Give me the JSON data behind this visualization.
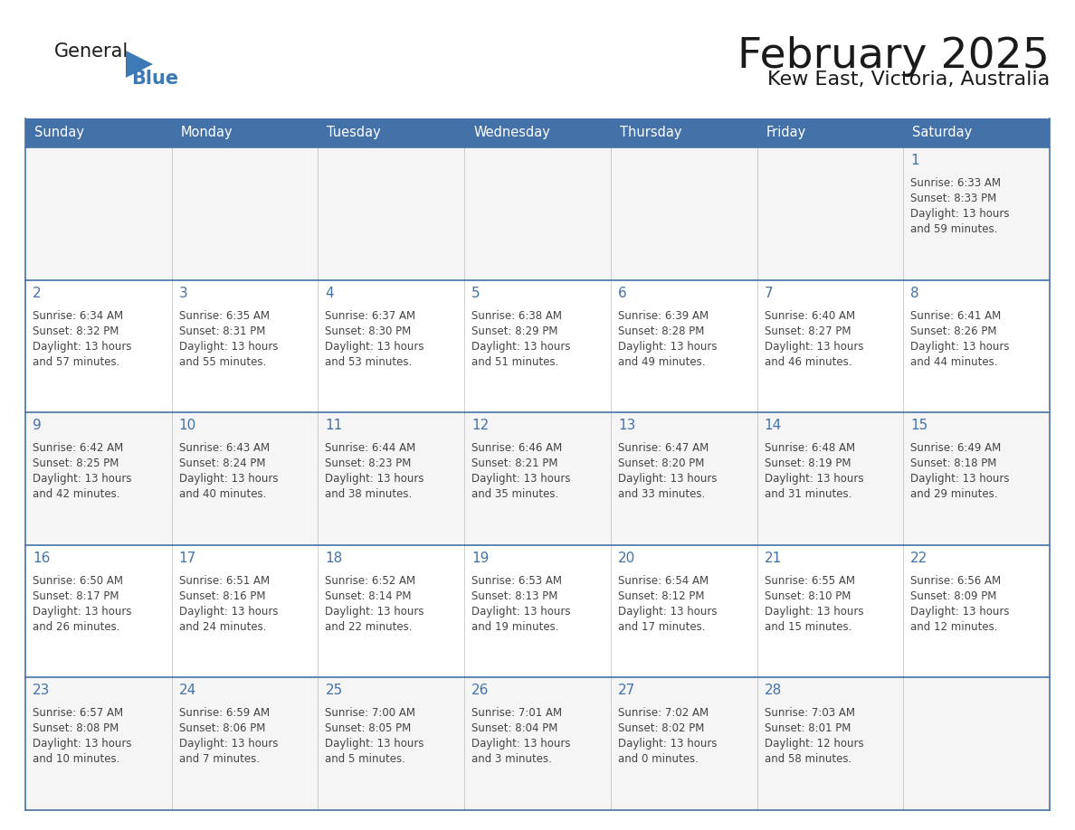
{
  "title": "February 2025",
  "subtitle": "Kew East, Victoria, Australia",
  "days_of_week": [
    "Sunday",
    "Monday",
    "Tuesday",
    "Wednesday",
    "Thursday",
    "Friday",
    "Saturday"
  ],
  "header_bg": "#4472a8",
  "header_text_color": "#ffffff",
  "cell_bg_odd": "#f5f5f5",
  "cell_bg_even": "#ffffff",
  "row_divider_color": "#4472a8",
  "col_divider_color": "#cccccc",
  "day_num_color": "#4472a8",
  "info_text_color": "#444444",
  "title_color": "#1a1a1a",
  "logo_general_color": "#1a1a1a",
  "logo_blue_color": "#3d7ab5",
  "logo_triangle_color": "#3d7ab5",
  "weeks": [
    [
      {
        "date": null
      },
      {
        "date": null
      },
      {
        "date": null
      },
      {
        "date": null
      },
      {
        "date": null
      },
      {
        "date": null
      },
      {
        "date": 1,
        "sunrise": "6:33 AM",
        "sunset": "8:33 PM",
        "daylight": "13 hours",
        "daylight2": "and 59 minutes."
      }
    ],
    [
      {
        "date": 2,
        "sunrise": "6:34 AM",
        "sunset": "8:32 PM",
        "daylight": "13 hours",
        "daylight2": "and 57 minutes."
      },
      {
        "date": 3,
        "sunrise": "6:35 AM",
        "sunset": "8:31 PM",
        "daylight": "13 hours",
        "daylight2": "and 55 minutes."
      },
      {
        "date": 4,
        "sunrise": "6:37 AM",
        "sunset": "8:30 PM",
        "daylight": "13 hours",
        "daylight2": "and 53 minutes."
      },
      {
        "date": 5,
        "sunrise": "6:38 AM",
        "sunset": "8:29 PM",
        "daylight": "13 hours",
        "daylight2": "and 51 minutes."
      },
      {
        "date": 6,
        "sunrise": "6:39 AM",
        "sunset": "8:28 PM",
        "daylight": "13 hours",
        "daylight2": "and 49 minutes."
      },
      {
        "date": 7,
        "sunrise": "6:40 AM",
        "sunset": "8:27 PM",
        "daylight": "13 hours",
        "daylight2": "and 46 minutes."
      },
      {
        "date": 8,
        "sunrise": "6:41 AM",
        "sunset": "8:26 PM",
        "daylight": "13 hours",
        "daylight2": "and 44 minutes."
      }
    ],
    [
      {
        "date": 9,
        "sunrise": "6:42 AM",
        "sunset": "8:25 PM",
        "daylight": "13 hours",
        "daylight2": "and 42 minutes."
      },
      {
        "date": 10,
        "sunrise": "6:43 AM",
        "sunset": "8:24 PM",
        "daylight": "13 hours",
        "daylight2": "and 40 minutes."
      },
      {
        "date": 11,
        "sunrise": "6:44 AM",
        "sunset": "8:23 PM",
        "daylight": "13 hours",
        "daylight2": "and 38 minutes."
      },
      {
        "date": 12,
        "sunrise": "6:46 AM",
        "sunset": "8:21 PM",
        "daylight": "13 hours",
        "daylight2": "and 35 minutes."
      },
      {
        "date": 13,
        "sunrise": "6:47 AM",
        "sunset": "8:20 PM",
        "daylight": "13 hours",
        "daylight2": "and 33 minutes."
      },
      {
        "date": 14,
        "sunrise": "6:48 AM",
        "sunset": "8:19 PM",
        "daylight": "13 hours",
        "daylight2": "and 31 minutes."
      },
      {
        "date": 15,
        "sunrise": "6:49 AM",
        "sunset": "8:18 PM",
        "daylight": "13 hours",
        "daylight2": "and 29 minutes."
      }
    ],
    [
      {
        "date": 16,
        "sunrise": "6:50 AM",
        "sunset": "8:17 PM",
        "daylight": "13 hours",
        "daylight2": "and 26 minutes."
      },
      {
        "date": 17,
        "sunrise": "6:51 AM",
        "sunset": "8:16 PM",
        "daylight": "13 hours",
        "daylight2": "and 24 minutes."
      },
      {
        "date": 18,
        "sunrise": "6:52 AM",
        "sunset": "8:14 PM",
        "daylight": "13 hours",
        "daylight2": "and 22 minutes."
      },
      {
        "date": 19,
        "sunrise": "6:53 AM",
        "sunset": "8:13 PM",
        "daylight": "13 hours",
        "daylight2": "and 19 minutes."
      },
      {
        "date": 20,
        "sunrise": "6:54 AM",
        "sunset": "8:12 PM",
        "daylight": "13 hours",
        "daylight2": "and 17 minutes."
      },
      {
        "date": 21,
        "sunrise": "6:55 AM",
        "sunset": "8:10 PM",
        "daylight": "13 hours",
        "daylight2": "and 15 minutes."
      },
      {
        "date": 22,
        "sunrise": "6:56 AM",
        "sunset": "8:09 PM",
        "daylight": "13 hours",
        "daylight2": "and 12 minutes."
      }
    ],
    [
      {
        "date": 23,
        "sunrise": "6:57 AM",
        "sunset": "8:08 PM",
        "daylight": "13 hours",
        "daylight2": "and 10 minutes."
      },
      {
        "date": 24,
        "sunrise": "6:59 AM",
        "sunset": "8:06 PM",
        "daylight": "13 hours",
        "daylight2": "and 7 minutes."
      },
      {
        "date": 25,
        "sunrise": "7:00 AM",
        "sunset": "8:05 PM",
        "daylight": "13 hours",
        "daylight2": "and 5 minutes."
      },
      {
        "date": 26,
        "sunrise": "7:01 AM",
        "sunset": "8:04 PM",
        "daylight": "13 hours",
        "daylight2": "and 3 minutes."
      },
      {
        "date": 27,
        "sunrise": "7:02 AM",
        "sunset": "8:02 PM",
        "daylight": "13 hours",
        "daylight2": "and 0 minutes."
      },
      {
        "date": 28,
        "sunrise": "7:03 AM",
        "sunset": "8:01 PM",
        "daylight": "12 hours",
        "daylight2": "and 58 minutes."
      },
      {
        "date": null
      }
    ]
  ]
}
